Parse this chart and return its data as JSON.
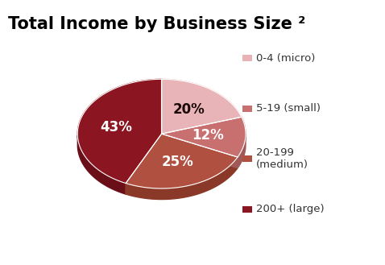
{
  "title": "Total Income by Business Size ²",
  "slices": [
    20,
    12,
    25,
    43
  ],
  "labels": [
    "0-4 (micro)",
    "5-19 (small)",
    "20-199\n(medium)",
    "200+ (large)"
  ],
  "colors": [
    "#e8b4b8",
    "#c87070",
    "#b05040",
    "#8b1520"
  ],
  "side_colors": [
    "#d09098",
    "#a05858",
    "#8a3828",
    "#6a0e18"
  ],
  "pct_labels": [
    "20%",
    "12%",
    "25%",
    "43%"
  ],
  "pct_colors": [
    "#1a0808",
    "#ffffff",
    "#ffffff",
    "#ffffff"
  ],
  "startangle": 90,
  "background_color": "#ffffff",
  "title_fontsize": 15,
  "legend_fontsize": 9.5,
  "pct_fontsize": 12
}
